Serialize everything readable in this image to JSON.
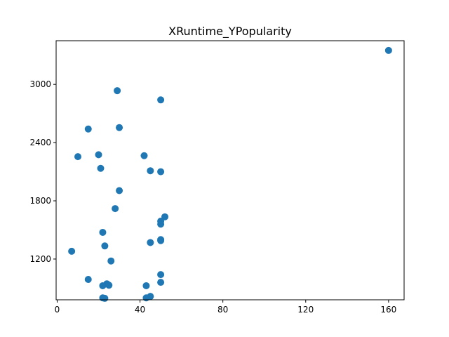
{
  "chart_data": {
    "type": "scatter",
    "title": "XRuntime_YPopularity",
    "xlabel": "",
    "ylabel": "",
    "xlim": [
      -0.5,
      167.5
    ],
    "ylim": [
      780,
      3450
    ],
    "x_ticks": [
      0,
      40,
      80,
      120,
      160
    ],
    "y_ticks": [
      1200,
      1800,
      2400,
      3000
    ],
    "grid": false,
    "legend": "none",
    "marker_color": "#1f77b4",
    "points": [
      {
        "x": 160,
        "y": 3350
      },
      {
        "x": 29,
        "y": 2935
      },
      {
        "x": 50,
        "y": 2840
      },
      {
        "x": 30,
        "y": 2555
      },
      {
        "x": 15,
        "y": 2540
      },
      {
        "x": 20,
        "y": 2275
      },
      {
        "x": 10,
        "y": 2255
      },
      {
        "x": 42,
        "y": 2265
      },
      {
        "x": 21,
        "y": 2135
      },
      {
        "x": 45,
        "y": 2110
      },
      {
        "x": 50,
        "y": 2100
      },
      {
        "x": 30,
        "y": 1905
      },
      {
        "x": 28,
        "y": 1720
      },
      {
        "x": 52,
        "y": 1635
      },
      {
        "x": 50,
        "y": 1590
      },
      {
        "x": 50,
        "y": 1560
      },
      {
        "x": 22,
        "y": 1475
      },
      {
        "x": 50,
        "y": 1400
      },
      {
        "x": 50,
        "y": 1390
      },
      {
        "x": 45,
        "y": 1370
      },
      {
        "x": 23,
        "y": 1335
      },
      {
        "x": 7,
        "y": 1280
      },
      {
        "x": 26,
        "y": 1180
      },
      {
        "x": 50,
        "y": 1040
      },
      {
        "x": 15,
        "y": 990
      },
      {
        "x": 50,
        "y": 960
      },
      {
        "x": 24,
        "y": 945
      },
      {
        "x": 25,
        "y": 930
      },
      {
        "x": 22,
        "y": 925
      },
      {
        "x": 43,
        "y": 925
      },
      {
        "x": 45,
        "y": 815
      },
      {
        "x": 43,
        "y": 800
      },
      {
        "x": 22,
        "y": 800
      },
      {
        "x": 23,
        "y": 795
      }
    ]
  }
}
